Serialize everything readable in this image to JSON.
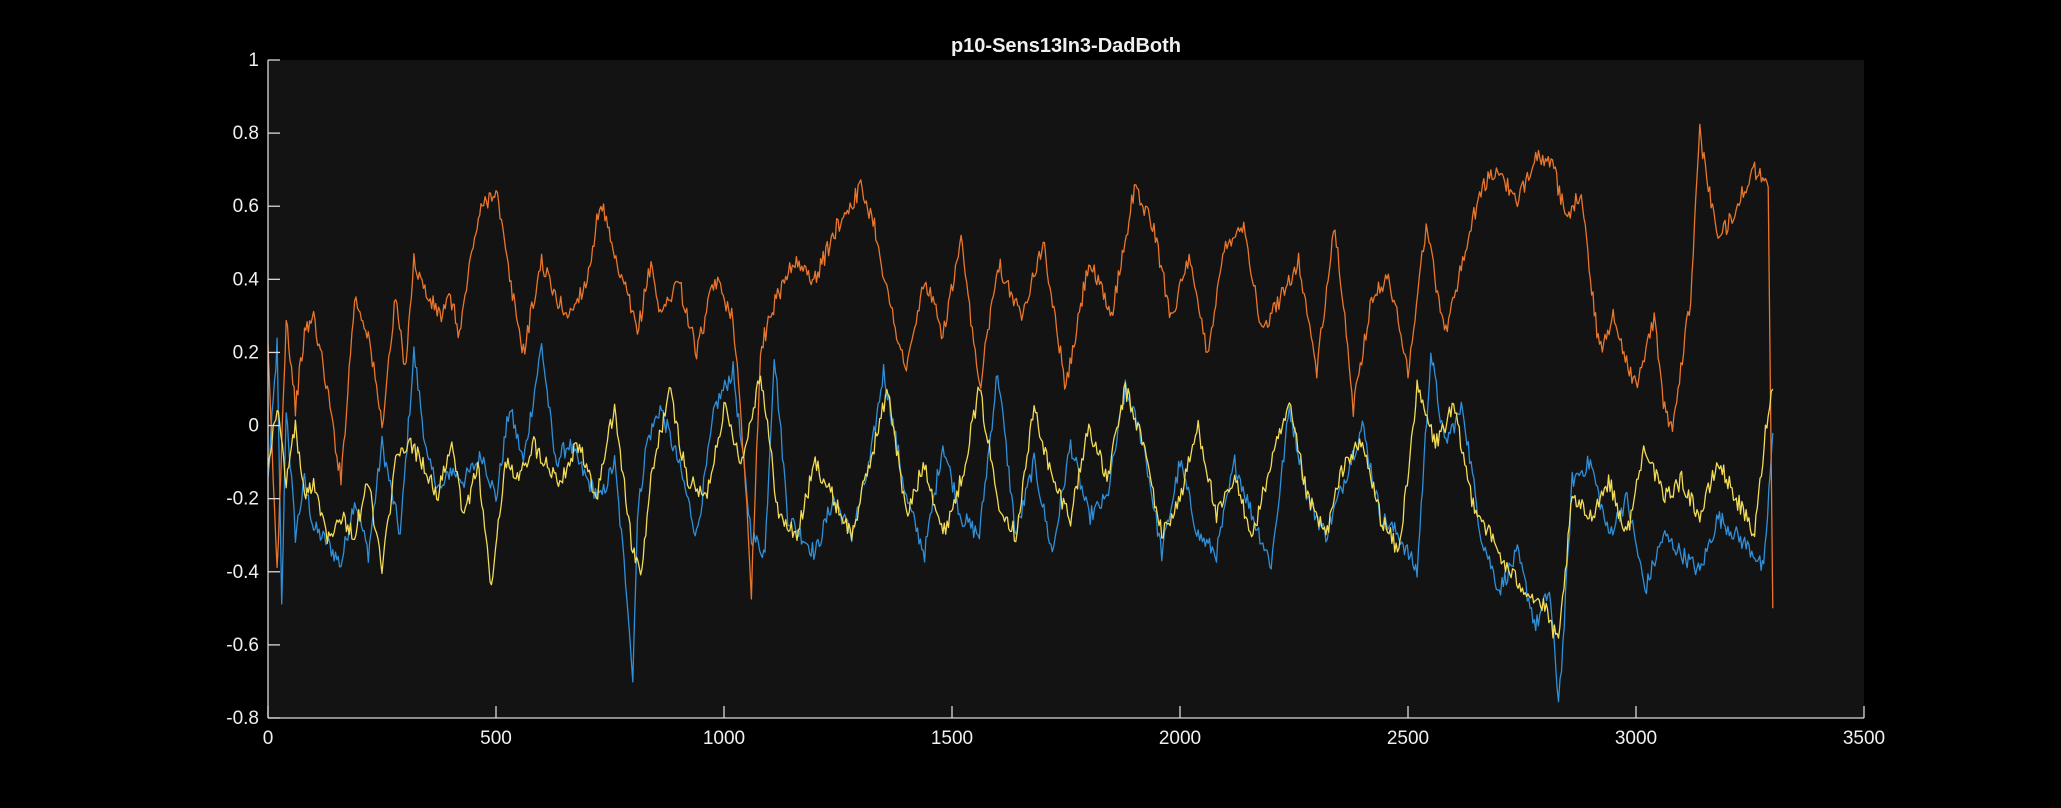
{
  "chart_data": {
    "type": "line",
    "title": "p10-Sens13In3-DadBoth",
    "xlabel": "",
    "ylabel": "",
    "xlim": [
      0,
      3500
    ],
    "ylim": [
      -0.8,
      1
    ],
    "xticks": [
      0,
      500,
      1000,
      1500,
      2000,
      2500,
      3000,
      3500
    ],
    "xtick_labels": [
      "0",
      "500",
      "1000",
      "1500",
      "2000",
      "2500",
      "3000",
      "3500"
    ],
    "yticks": [
      -0.8,
      -0.6,
      -0.4,
      -0.2,
      0,
      0.2,
      0.4,
      0.6,
      0.8,
      1
    ],
    "ytick_labels": [
      "-0.8",
      "-0.6",
      "-0.4",
      "-0.2",
      "0",
      "0.2",
      "0.4",
      "0.6",
      "0.8",
      "1"
    ],
    "grid": false,
    "legend": "none",
    "background": "#131313",
    "series": [
      {
        "color": "#2f8fd8",
        "x": [
          0,
          20,
          30,
          40,
          60,
          80,
          100,
          130,
          160,
          190,
          220,
          250,
          290,
          320,
          350,
          380,
          400,
          430,
          470,
          500,
          530,
          560,
          600,
          630,
          660,
          700,
          730,
          760,
          790,
          800,
          810,
          830,
          860,
          900,
          940,
          980,
          1020,
          1060,
          1090,
          1110,
          1140,
          1170,
          1200,
          1240,
          1280,
          1320,
          1350,
          1400,
          1440,
          1480,
          1520,
          1560,
          1600,
          1640,
          1680,
          1720,
          1760,
          1800,
          1840,
          1880,
          1920,
          1960,
          2000,
          2040,
          2080,
          2120,
          2160,
          2200,
          2240,
          2280,
          2320,
          2360,
          2400,
          2440,
          2480,
          2520,
          2550,
          2580,
          2620,
          2660,
          2700,
          2740,
          2780,
          2810,
          2830,
          2840,
          2860,
          2900,
          2940,
          2980,
          3020,
          3060,
          3100,
          3140,
          3180,
          3220,
          3260,
          3280,
          3300
        ],
        "y": [
          -0.15,
          0.22,
          -0.5,
          0.05,
          -0.3,
          -0.15,
          -0.28,
          -0.32,
          -0.38,
          -0.2,
          -0.35,
          -0.05,
          -0.3,
          0.2,
          -0.1,
          -0.18,
          -0.12,
          -0.15,
          -0.08,
          -0.2,
          0.05,
          -0.1,
          0.22,
          -0.1,
          -0.05,
          -0.15,
          -0.2,
          -0.1,
          -0.5,
          -0.7,
          -0.25,
          -0.05,
          0.05,
          -0.1,
          -0.3,
          0.05,
          0.15,
          -0.3,
          -0.35,
          0.2,
          -0.25,
          -0.3,
          -0.35,
          -0.2,
          -0.3,
          -0.1,
          0.15,
          -0.2,
          -0.35,
          -0.05,
          -0.25,
          -0.3,
          0.15,
          -0.3,
          -0.1,
          -0.35,
          -0.05,
          -0.25,
          -0.2,
          0.1,
          -0.05,
          -0.35,
          -0.1,
          -0.3,
          -0.35,
          -0.1,
          -0.25,
          -0.38,
          0.05,
          -0.2,
          -0.3,
          -0.15,
          0.0,
          -0.25,
          -0.3,
          -0.4,
          0.2,
          -0.05,
          0.05,
          -0.3,
          -0.45,
          -0.35,
          -0.55,
          -0.45,
          -0.75,
          -0.6,
          -0.15,
          -0.1,
          -0.3,
          -0.2,
          -0.45,
          -0.3,
          -0.35,
          -0.4,
          -0.25,
          -0.3,
          -0.35,
          -0.4,
          -0.02
        ]
      },
      {
        "color": "#e8762c",
        "x": [
          0,
          20,
          40,
          60,
          80,
          100,
          130,
          160,
          190,
          220,
          250,
          280,
          300,
          320,
          350,
          380,
          400,
          420,
          450,
          470,
          500,
          530,
          560,
          600,
          630,
          660,
          700,
          730,
          760,
          790,
          810,
          840,
          860,
          900,
          940,
          980,
          1020,
          1050,
          1060,
          1080,
          1100,
          1150,
          1200,
          1250,
          1300,
          1330,
          1360,
          1400,
          1440,
          1480,
          1520,
          1560,
          1600,
          1650,
          1700,
          1750,
          1800,
          1850,
          1900,
          1940,
          1980,
          2020,
          2060,
          2100,
          2140,
          2180,
          2220,
          2260,
          2300,
          2340,
          2380,
          2420,
          2460,
          2500,
          2540,
          2580,
          2620,
          2660,
          2700,
          2740,
          2780,
          2820,
          2850,
          2880,
          2900,
          2920,
          2950,
          3000,
          3040,
          3060,
          3080,
          3120,
          3140,
          3180,
          3220,
          3260,
          3290,
          3300
        ],
        "y": [
          0.2,
          -0.4,
          0.3,
          0.05,
          0.25,
          0.3,
          0.1,
          -0.15,
          0.35,
          0.25,
          0.0,
          0.35,
          0.15,
          0.45,
          0.35,
          0.3,
          0.35,
          0.25,
          0.5,
          0.6,
          0.65,
          0.4,
          0.2,
          0.45,
          0.35,
          0.3,
          0.4,
          0.62,
          0.45,
          0.35,
          0.25,
          0.45,
          0.3,
          0.4,
          0.2,
          0.4,
          0.3,
          -0.2,
          -0.45,
          0.2,
          0.3,
          0.45,
          0.4,
          0.55,
          0.65,
          0.55,
          0.35,
          0.15,
          0.4,
          0.25,
          0.5,
          0.1,
          0.45,
          0.3,
          0.5,
          0.1,
          0.45,
          0.3,
          0.65,
          0.55,
          0.3,
          0.45,
          0.2,
          0.5,
          0.55,
          0.25,
          0.35,
          0.45,
          0.15,
          0.55,
          0.05,
          0.35,
          0.4,
          0.15,
          0.55,
          0.25,
          0.45,
          0.65,
          0.7,
          0.6,
          0.75,
          0.7,
          0.55,
          0.65,
          0.4,
          0.2,
          0.3,
          0.1,
          0.3,
          0.05,
          0.0,
          0.35,
          0.8,
          0.5,
          0.6,
          0.7,
          0.65,
          -0.5
        ]
      },
      {
        "color": "#f2dc57",
        "x": [
          0,
          20,
          40,
          60,
          80,
          100,
          130,
          160,
          190,
          220,
          250,
          280,
          310,
          340,
          370,
          400,
          430,
          460,
          490,
          520,
          550,
          580,
          610,
          640,
          680,
          720,
          760,
          800,
          820,
          840,
          880,
          920,
          960,
          1000,
          1040,
          1080,
          1120,
          1160,
          1200,
          1240,
          1280,
          1320,
          1360,
          1400,
          1440,
          1480,
          1520,
          1560,
          1600,
          1640,
          1680,
          1720,
          1760,
          1800,
          1840,
          1880,
          1920,
          1960,
          2000,
          2040,
          2080,
          2120,
          2160,
          2200,
          2240,
          2280,
          2320,
          2360,
          2400,
          2440,
          2480,
          2520,
          2560,
          2600,
          2640,
          2680,
          2720,
          2760,
          2800,
          2830,
          2860,
          2900,
          2940,
          2980,
          3020,
          3060,
          3100,
          3140,
          3180,
          3220,
          3260,
          3290,
          3300
        ],
        "y": [
          -0.1,
          0.05,
          -0.15,
          0.0,
          -0.2,
          -0.15,
          -0.3,
          -0.25,
          -0.3,
          -0.15,
          -0.4,
          -0.1,
          -0.05,
          -0.1,
          -0.2,
          -0.05,
          -0.25,
          -0.1,
          -0.45,
          -0.1,
          -0.15,
          -0.05,
          -0.1,
          -0.15,
          -0.05,
          -0.2,
          0.05,
          -0.35,
          -0.4,
          -0.15,
          0.1,
          -0.15,
          -0.2,
          0.05,
          -0.1,
          0.15,
          -0.25,
          -0.3,
          -0.1,
          -0.2,
          -0.3,
          -0.1,
          0.1,
          -0.25,
          -0.1,
          -0.3,
          -0.15,
          0.1,
          -0.2,
          -0.3,
          0.05,
          -0.15,
          -0.25,
          0.0,
          -0.15,
          0.1,
          -0.05,
          -0.3,
          -0.2,
          0.0,
          -0.25,
          -0.15,
          -0.3,
          -0.1,
          0.05,
          -0.2,
          -0.3,
          -0.1,
          -0.05,
          -0.25,
          -0.35,
          0.1,
          -0.05,
          0.05,
          -0.2,
          -0.3,
          -0.4,
          -0.45,
          -0.5,
          -0.6,
          -0.2,
          -0.25,
          -0.15,
          -0.3,
          -0.05,
          -0.2,
          -0.15,
          -0.25,
          -0.1,
          -0.2,
          -0.3,
          0.05,
          0.1
        ]
      }
    ]
  }
}
